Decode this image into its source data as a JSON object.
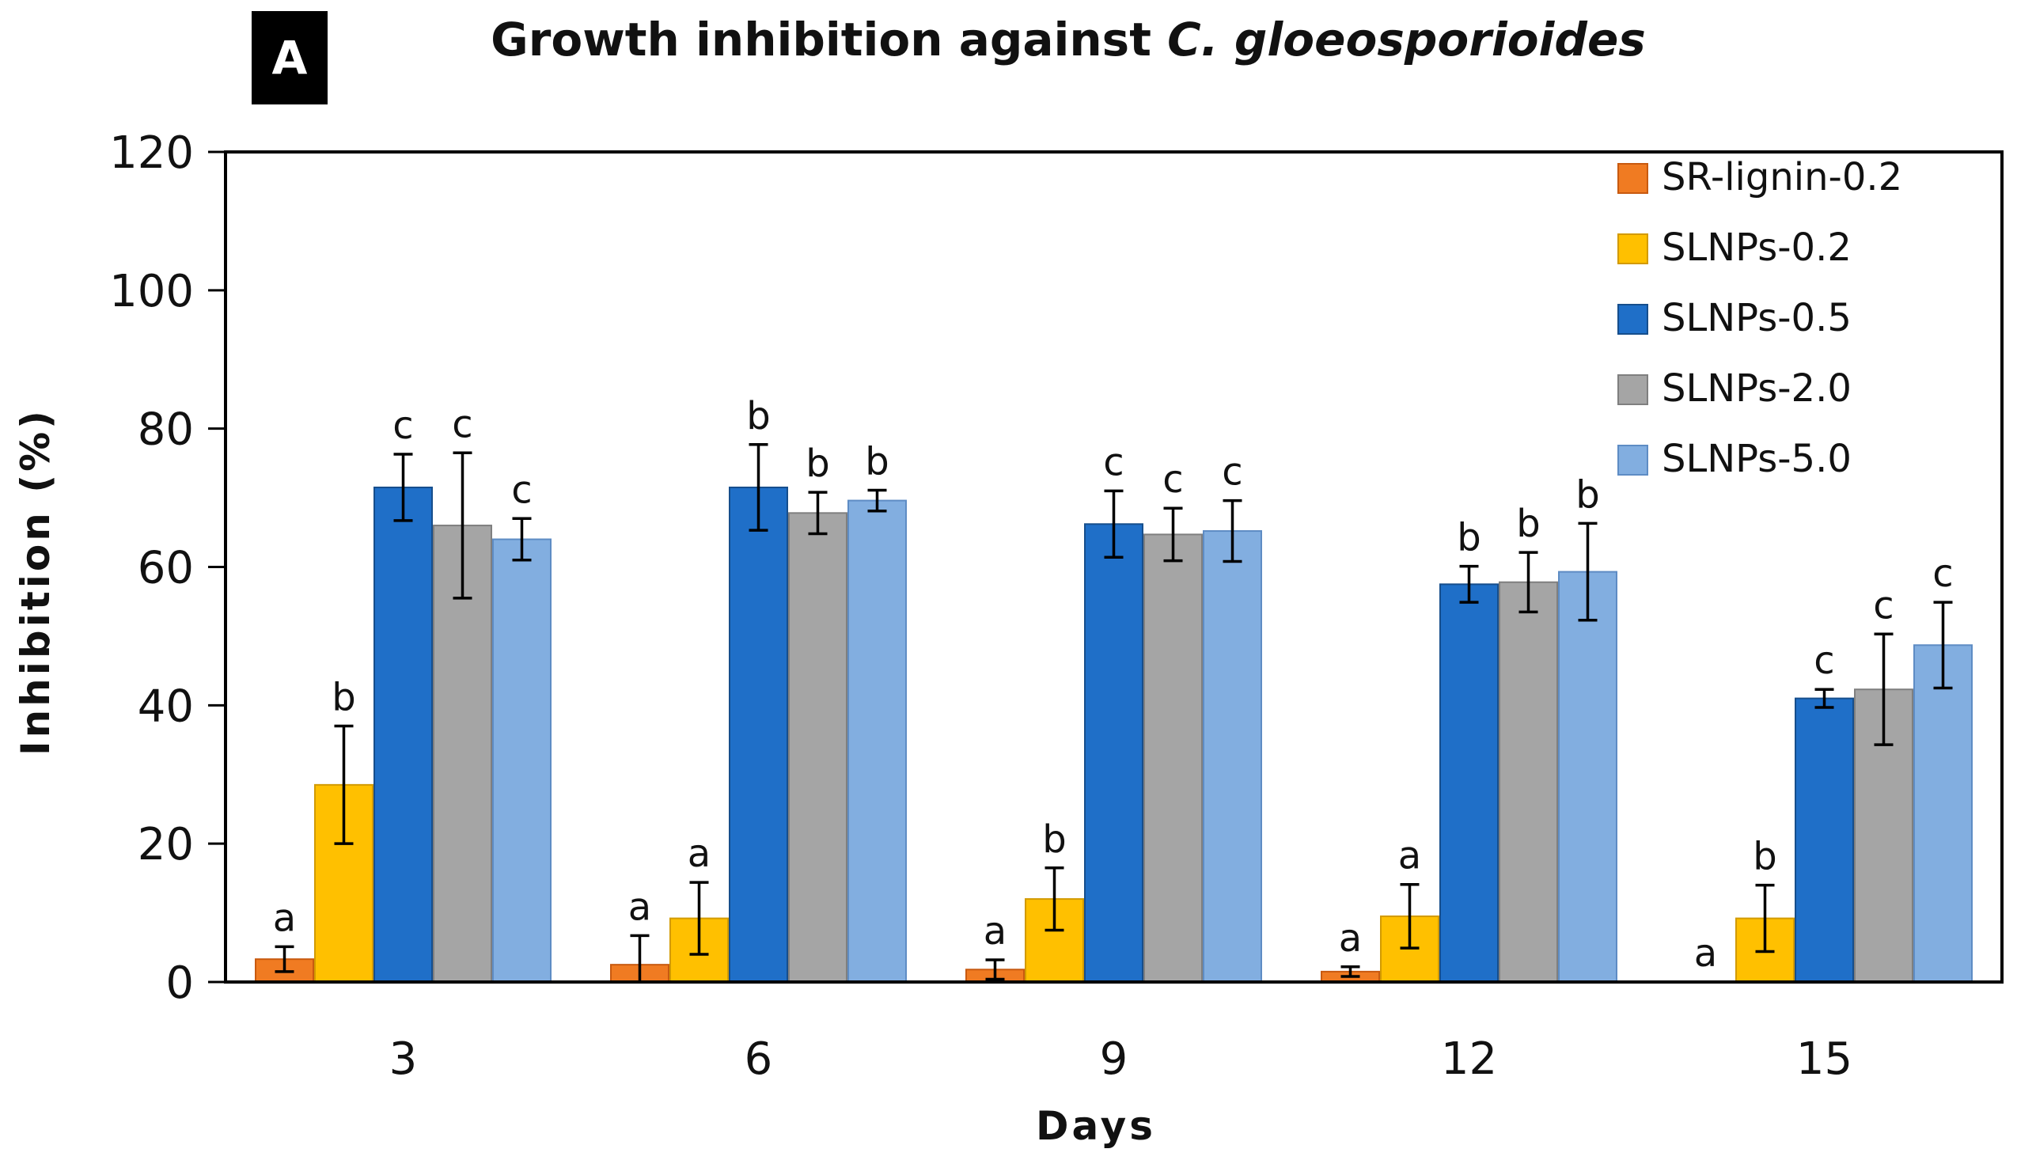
{
  "chart_data": {
    "type": "bar",
    "panel_label": "A",
    "title_prefix": "Growth inhibition against ",
    "title_italic": "C. gloeosporioides",
    "xlabel": "Days",
    "ylabel": "Inhibition (%)",
    "ylim": [
      0,
      120
    ],
    "yticks": [
      0,
      20,
      40,
      60,
      80,
      100,
      120
    ],
    "categories": [
      "3",
      "6",
      "9",
      "12",
      "15"
    ],
    "legend_position": "top-right",
    "series": [
      {
        "name": "SR-lignin-0.2",
        "color": "#F07B22",
        "stroke": "#C85A10",
        "values": [
          3.3,
          2.5,
          1.8,
          1.5,
          null
        ],
        "errors": [
          1.8,
          4.2,
          1.4,
          0.7,
          null
        ],
        "letters": [
          "a",
          "a",
          "a",
          "a",
          "a"
        ]
      },
      {
        "name": "SLNPs-0.2",
        "color": "#FFC000",
        "stroke": "#D29A00",
        "values": [
          28.5,
          9.2,
          12.0,
          9.5,
          9.2
        ],
        "errors": [
          8.5,
          5.2,
          4.5,
          4.6,
          4.8
        ],
        "letters": [
          "b",
          "a",
          "b",
          "a",
          "b"
        ]
      },
      {
        "name": "SLNPs-0.5",
        "color": "#1F6FC8",
        "stroke": "#164E8C",
        "values": [
          71.5,
          71.5,
          66.2,
          57.5,
          41.0
        ],
        "errors": [
          4.8,
          6.2,
          4.8,
          2.6,
          1.3
        ],
        "letters": [
          "c",
          "b",
          "c",
          "b",
          "c"
        ]
      },
      {
        "name": "SLNPs-2.0",
        "color": "#A5A5A5",
        "stroke": "#7F7F7F",
        "values": [
          66.0,
          67.8,
          64.7,
          57.8,
          42.3
        ],
        "errors": [
          10.5,
          3.0,
          3.8,
          4.3,
          8.0
        ],
        "letters": [
          "c",
          "b",
          "c",
          "b",
          "c"
        ]
      },
      {
        "name": "SLNPs-5.0",
        "color": "#82AEE0",
        "stroke": "#5E8CC4",
        "values": [
          64.0,
          69.6,
          65.2,
          59.3,
          48.7
        ],
        "errors": [
          3.0,
          1.5,
          4.4,
          7.0,
          6.2
        ],
        "letters": [
          "c",
          "b",
          "c",
          "b",
          "c"
        ]
      }
    ]
  }
}
